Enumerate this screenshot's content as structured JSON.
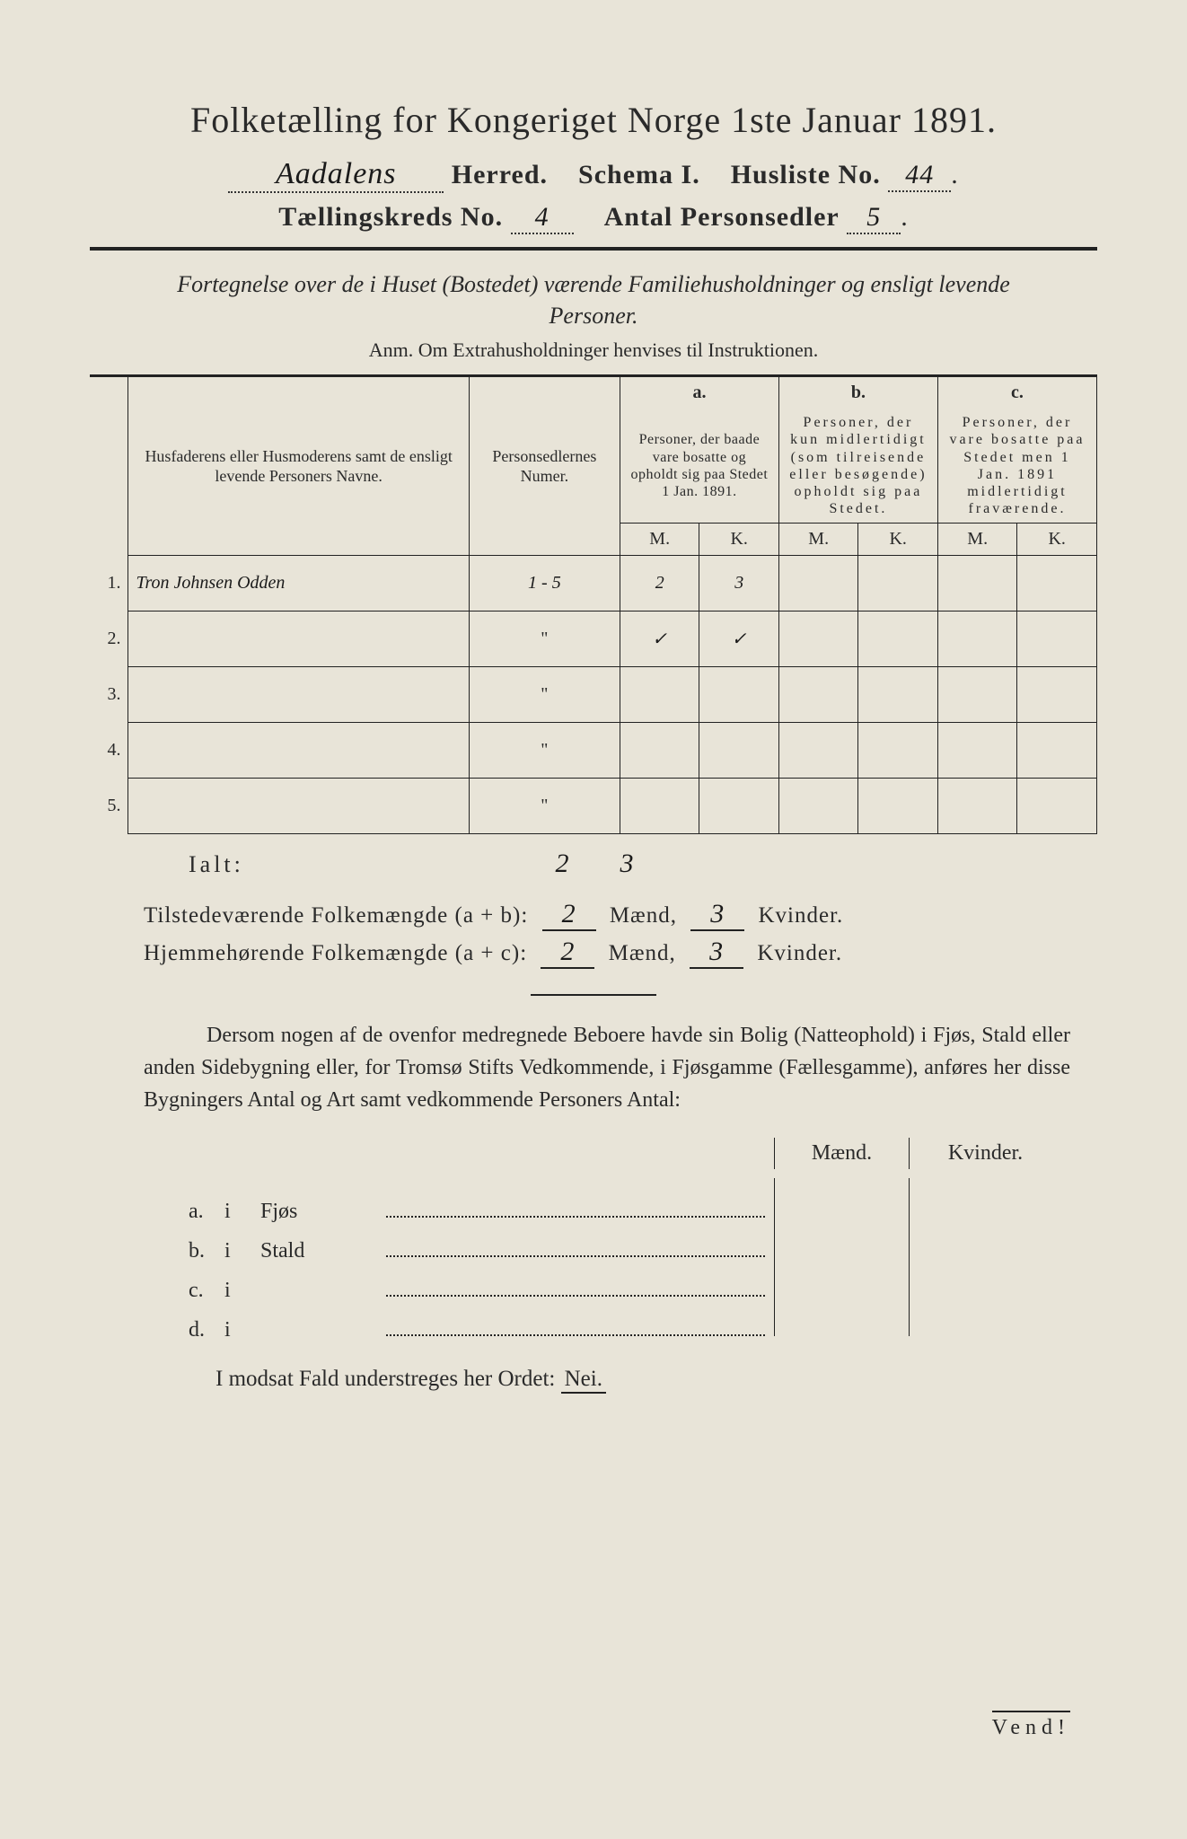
{
  "title": "Folketælling for Kongeriget Norge 1ste Januar 1891.",
  "header": {
    "herred_value": "Aadalens",
    "herred_label": "Herred.",
    "schema_label": "Schema I.",
    "husliste_label": "Husliste No.",
    "husliste_value": "44",
    "kreds_label": "Tællingskreds No.",
    "kreds_value": "4",
    "antal_label": "Antal Personsedler",
    "antal_value": "5"
  },
  "intro": "Fortegnelse over de i Huset (Bostedet) værende Familiehusholdninger og ensligt levende Personer.",
  "anm": "Anm.  Om Extrahusholdninger henvises til Instruktionen.",
  "table": {
    "col1": "Husfaderens eller Husmoderens samt de ensligt levende Personers Navne.",
    "col2": "Personsedlernes Numer.",
    "col_a_label": "a.",
    "col_a": "Personer, der baade vare bosatte og opholdt sig paa Stedet 1 Jan. 1891.",
    "col_b_label": "b.",
    "col_b": "Personer, der kun midlertidigt (som tilreisende eller besøgende) opholdt sig paa Stedet.",
    "col_c_label": "c.",
    "col_c": "Personer, der vare bosatte paa Stedet men 1 Jan. 1891 midlertidigt fraværende.",
    "m": "M.",
    "k": "K.",
    "rows": [
      {
        "n": "1.",
        "name": "Tron Johnsen Odden",
        "sedler": "1 - 5",
        "am": "2",
        "ak": "3",
        "bm": "",
        "bk": "",
        "cm": "",
        "ck": ""
      },
      {
        "n": "2.",
        "name": "",
        "sedler": "\"",
        "am": "✓",
        "ak": "✓",
        "bm": "",
        "bk": "",
        "cm": "",
        "ck": ""
      },
      {
        "n": "3.",
        "name": "",
        "sedler": "\"",
        "am": "",
        "ak": "",
        "bm": "",
        "bk": "",
        "cm": "",
        "ck": ""
      },
      {
        "n": "4.",
        "name": "",
        "sedler": "\"",
        "am": "",
        "ak": "",
        "bm": "",
        "bk": "",
        "cm": "",
        "ck": ""
      },
      {
        "n": "5.",
        "name": "",
        "sedler": "\"",
        "am": "",
        "ak": "",
        "bm": "",
        "bk": "",
        "cm": "",
        "ck": ""
      }
    ]
  },
  "ialt": {
    "label": "Ialt:",
    "am": "2",
    "ak": "3"
  },
  "summary": {
    "line1_label": "Tilstedeværende Folkemængde (a + b):",
    "line2_label": "Hjemmehørende Folkemængde (a + c):",
    "maend_label": "Mænd,",
    "kvinder_label": "Kvinder.",
    "l1m": "2",
    "l1k": "3",
    "l2m": "2",
    "l2k": "3"
  },
  "para": "Dersom nogen af de ovenfor medregnede Beboere havde sin Bolig (Natteophold) i Fjøs, Stald eller anden Sidebygning eller, for Tromsø Stifts Vedkommende, i Fjøsgamme (Fællesgamme), anføres her disse Bygningers Antal og Art samt vedkommende Personers Antal:",
  "mk": {
    "m": "Mænd.",
    "k": "Kvinder."
  },
  "abcd": {
    "a": {
      "let": "a.",
      "i": "i",
      "label": "Fjøs"
    },
    "b": {
      "let": "b.",
      "i": "i",
      "label": "Stald"
    },
    "c": {
      "let": "c.",
      "i": "i",
      "label": ""
    },
    "d": {
      "let": "d.",
      "i": "i",
      "label": ""
    }
  },
  "nei": {
    "text": "I modsat Fald understreges her Ordet:",
    "word": "Nei."
  },
  "vend": "Vend!"
}
